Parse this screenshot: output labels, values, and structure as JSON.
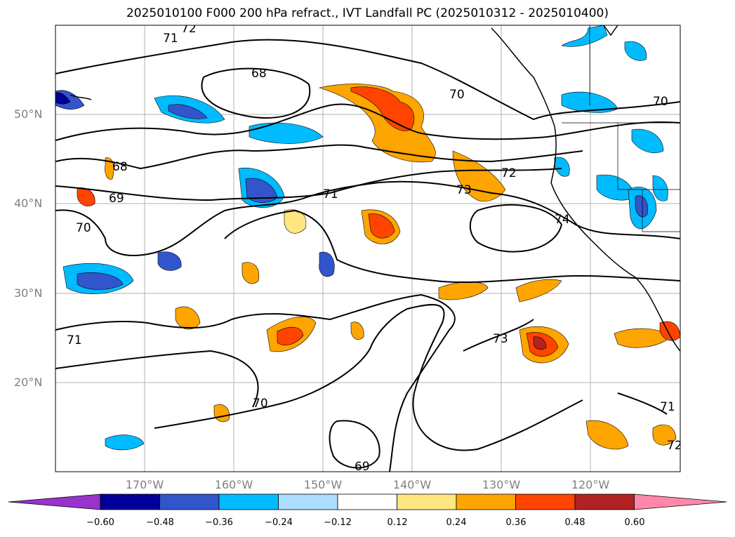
{
  "title": "2025010100 F000 200 hPa refract., IVT Landfall PC (2025010312 - 2025010400)",
  "lat_labels": [
    "50°N",
    "40°N",
    "30°N",
    "20°N"
  ],
  "lon_labels": [
    "170°W",
    "160°W",
    "150°W",
    "140°W",
    "130°W",
    "120°W"
  ],
  "contour_labels": [
    "72",
    "71",
    "68",
    "70",
    "70",
    "68",
    "69",
    "71",
    "72",
    "73",
    "70",
    "71",
    "73",
    "70",
    "69",
    "71",
    "72",
    "74"
  ],
  "colorbar": {
    "ticks": [
      "−0.60",
      "−0.48",
      "−0.36",
      "−0.24",
      "−0.12",
      "0.12",
      "0.24",
      "0.36",
      "0.48",
      "0.60"
    ],
    "colors": [
      "#9933cc",
      "#000099",
      "#3355cc",
      "#00bbff",
      "#aaddff",
      "#ffffff",
      "#ffe680",
      "#ffa500",
      "#ff4400",
      "#b22222",
      "#ff88aa"
    ]
  }
}
